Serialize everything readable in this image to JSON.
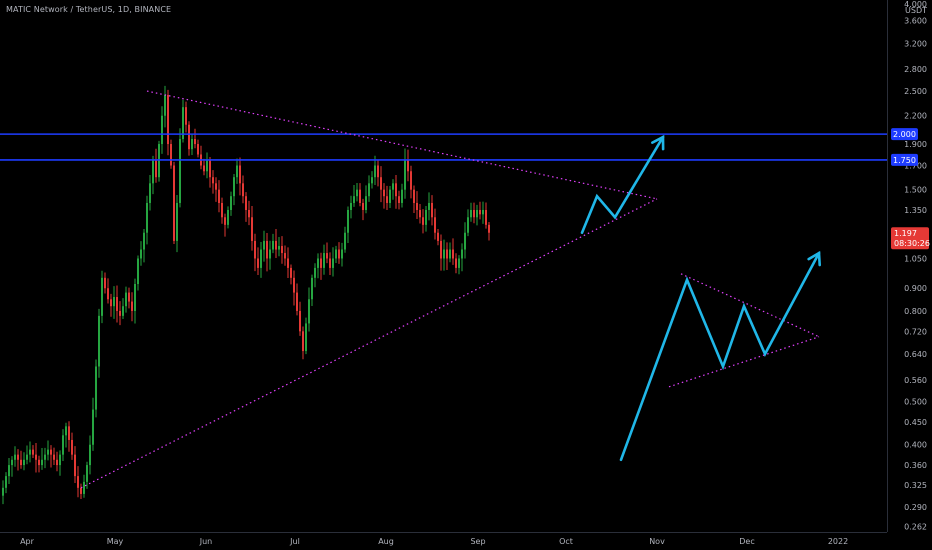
{
  "chart_title": "MATIC Network / TetherUS, 1D, BINANCE",
  "chart_data": {
    "type": "candlestick",
    "title": "MATIC Network / TetherUS, 1D, BINANCE",
    "y_scale": "log",
    "y_unit": "USDT",
    "ylim": [
      0.25,
      4.0
    ],
    "x_ticks": [
      "Apr",
      "May",
      "Jun",
      "Jul",
      "Aug",
      "Sep",
      "Oct",
      "Nov",
      "Dec",
      "2022"
    ],
    "y_ticks": [
      "4.000",
      "3.600",
      "3.200",
      "2.800",
      "2.500",
      "2.200",
      "1.900",
      "1.700",
      "1.500",
      "1.350",
      "1.050",
      "0.900",
      "0.800",
      "0.720",
      "0.640",
      "0.560",
      "0.500",
      "0.450",
      "0.400",
      "0.360",
      "0.325",
      "0.290",
      "0.262"
    ],
    "price_lines": [
      {
        "label": "2.000",
        "value": 2.0,
        "color": "#1e3cff"
      },
      {
        "label": "1.750",
        "value": 1.75,
        "color": "#1e3cff"
      }
    ],
    "current_price": {
      "label": "1.197",
      "value": 1.197,
      "countdown": "08:30:26",
      "color": "#e53935"
    },
    "candle_colors": {
      "up": "#26a641",
      "down": "#e53935"
    },
    "closes": [
      0.32,
      0.34,
      0.36,
      0.37,
      0.38,
      0.37,
      0.36,
      0.37,
      0.38,
      0.39,
      0.38,
      0.37,
      0.36,
      0.37,
      0.38,
      0.39,
      0.38,
      0.37,
      0.36,
      0.38,
      0.42,
      0.44,
      0.41,
      0.38,
      0.34,
      0.32,
      0.31,
      0.33,
      0.36,
      0.4,
      0.48,
      0.6,
      0.78,
      0.95,
      0.9,
      0.85,
      0.82,
      0.86,
      0.8,
      0.78,
      0.82,
      0.88,
      0.84,
      0.8,
      0.92,
      1.05,
      1.1,
      1.2,
      1.4,
      1.55,
      1.75,
      1.6,
      1.9,
      2.2,
      2.45,
      1.9,
      1.7,
      1.15,
      1.4,
      1.95,
      2.3,
      2.1,
      1.85,
      1.95,
      1.9,
      1.8,
      1.7,
      1.65,
      1.75,
      1.6,
      1.55,
      1.5,
      1.4,
      1.3,
      1.25,
      1.35,
      1.45,
      1.6,
      1.7,
      1.55,
      1.45,
      1.35,
      1.3,
      1.15,
      1.05,
      1.0,
      1.1,
      1.15,
      1.05,
      1.1,
      1.15,
      1.1,
      1.12,
      1.08,
      1.05,
      1.0,
      0.95,
      0.88,
      0.8,
      0.72,
      0.65,
      0.75,
      0.85,
      0.95,
      1.0,
      1.05,
      1.0,
      1.08,
      1.05,
      1.0,
      1.05,
      1.1,
      1.05,
      1.1,
      1.2,
      1.35,
      1.4,
      1.45,
      1.5,
      1.4,
      1.35,
      1.45,
      1.55,
      1.6,
      1.7,
      1.6,
      1.5,
      1.45,
      1.4,
      1.5,
      1.55,
      1.45,
      1.4,
      1.5,
      1.75,
      1.65,
      1.5,
      1.4,
      1.35,
      1.3,
      1.25,
      1.35,
      1.4,
      1.3,
      1.2,
      1.15,
      1.05,
      1.1,
      1.05,
      1.1,
      1.05,
      1.0,
      1.05,
      1.1,
      1.2,
      1.3,
      1.35,
      1.3,
      1.35,
      1.32,
      1.35,
      1.25,
      1.2
    ],
    "trendlines": [
      {
        "name": "upper-trendline",
        "style": "dotted",
        "color": "#e040fb",
        "from": {
          "day": 48,
          "price": 2.5
        },
        "to": {
          "day": 218,
          "price": 1.43
        }
      },
      {
        "name": "lower-trendline",
        "style": "dotted",
        "color": "#e040fb",
        "from": {
          "day": 26,
          "price": 0.32
        },
        "to": {
          "day": 218,
          "price": 1.43
        }
      },
      {
        "name": "small-upper-trendline",
        "style": "dotted",
        "color": "#e040fb",
        "from": {
          "day": 226,
          "price": 0.97
        },
        "to": {
          "day": 272,
          "price": 0.7
        }
      },
      {
        "name": "small-lower-trendline",
        "style": "dotted",
        "color": "#e040fb",
        "from": {
          "day": 222,
          "price": 0.54
        },
        "to": {
          "day": 272,
          "price": 0.7
        }
      }
    ],
    "projections": [
      {
        "name": "projection-arrow-upper",
        "color": "#20b7e8",
        "points": [
          {
            "day": 193,
            "price": 1.2
          },
          {
            "day": 198,
            "price": 1.45
          },
          {
            "day": 204,
            "price": 1.3
          },
          {
            "day": 220,
            "price": 1.97
          }
        ]
      },
      {
        "name": "projection-arrow-lower",
        "color": "#20b7e8",
        "points": [
          {
            "day": 206,
            "price": 0.37
          },
          {
            "day": 228,
            "price": 0.94
          },
          {
            "day": 240,
            "price": 0.6
          },
          {
            "day": 247,
            "price": 0.82
          },
          {
            "day": 254,
            "price": 0.64
          },
          {
            "day": 272,
            "price": 1.08
          }
        ]
      }
    ]
  }
}
